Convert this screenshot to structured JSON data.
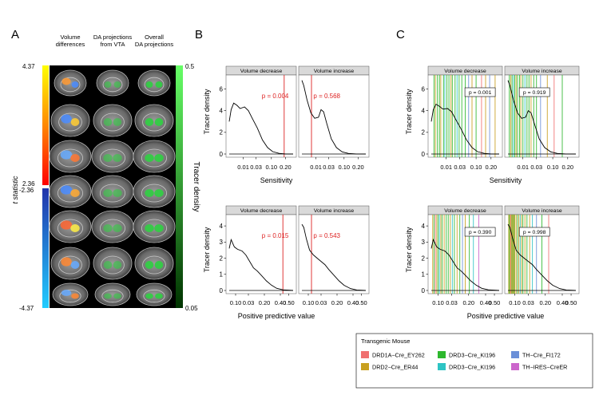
{
  "figure": {
    "panel_labels": [
      "A",
      "B",
      "C"
    ]
  },
  "panel_a": {
    "column_headers": [
      [
        "Volume",
        "differences"
      ],
      [
        "DA projections",
        "from VTA"
      ],
      [
        "Overall",
        "DA projections"
      ]
    ],
    "t_axis": {
      "title": "t statistic",
      "ticks": [
        "4.37",
        "2.36",
        "-2.36",
        "-4.37"
      ]
    },
    "tracer_axis": {
      "title": "Tracer density",
      "ticks": [
        "0.5",
        "0.05"
      ]
    },
    "colors": {
      "hot_top": "#ffff00",
      "hot_bottom": "#ff0000",
      "cold_top": "#2233aa",
      "cold_bottom": "#22ccff",
      "tracer_top": "#66ff66",
      "tracer_bottom": "#003300"
    }
  },
  "chart_data": [
    {
      "id": "B-sensitivity",
      "type": "line",
      "panel": "B",
      "ylabel": "Tracer density",
      "xlabel": "Sensitivity",
      "x_ticks": [
        "0.01",
        "0.03",
        "0.10",
        "0.20"
      ],
      "facets": [
        {
          "title": "Volume decrease",
          "y_ticks": [
            "0",
            "2",
            "4",
            "6"
          ],
          "ylim": [
            0,
            7
          ],
          "p_label": "p = 0.004",
          "density": [
            [
              0,
              3.0
            ],
            [
              0.03,
              4.1
            ],
            [
              0.07,
              4.7
            ],
            [
              0.12,
              4.5
            ],
            [
              0.17,
              4.2
            ],
            [
              0.24,
              4.35
            ],
            [
              0.3,
              4.0
            ],
            [
              0.36,
              3.3
            ],
            [
              0.44,
              2.4
            ],
            [
              0.52,
              1.3
            ],
            [
              0.6,
              0.6
            ],
            [
              0.68,
              0.22
            ],
            [
              0.78,
              0.06
            ],
            [
              0.88,
              0.01
            ],
            [
              1,
              0
            ]
          ],
          "threshold_x": 0.86
        },
        {
          "title": "Volume increase",
          "y_ticks": [],
          "ylim": [
            0,
            7
          ],
          "p_label": "p = 0.568",
          "density": [
            [
              0,
              6.8
            ],
            [
              0.03,
              6.3
            ],
            [
              0.08,
              5.0
            ],
            [
              0.14,
              3.8
            ],
            [
              0.2,
              3.3
            ],
            [
              0.26,
              3.4
            ],
            [
              0.3,
              4.1
            ],
            [
              0.34,
              3.9
            ],
            [
              0.39,
              2.8
            ],
            [
              0.46,
              1.4
            ],
            [
              0.54,
              0.6
            ],
            [
              0.63,
              0.2
            ],
            [
              0.73,
              0.05
            ],
            [
              0.85,
              0.01
            ],
            [
              1,
              0
            ]
          ],
          "threshold_x": 0.15
        }
      ]
    },
    {
      "id": "B-ppv",
      "type": "line",
      "panel": "B",
      "ylabel": "Tracer density",
      "xlabel": "Positive predictive value",
      "x_ticks": [
        "0.10",
        "0.03",
        "0.20",
        "0.40",
        "0.50"
      ],
      "facets": [
        {
          "title": "Volume decrease",
          "y_ticks": [
            "0",
            "1",
            "2",
            "3",
            "4"
          ],
          "ylim": [
            0,
            4.5
          ],
          "p_label": "p = 0.015",
          "density": [
            [
              0,
              2.6
            ],
            [
              0.03,
              3.15
            ],
            [
              0.08,
              2.7
            ],
            [
              0.13,
              2.55
            ],
            [
              0.2,
              2.45
            ],
            [
              0.26,
              2.2
            ],
            [
              0.32,
              1.8
            ],
            [
              0.38,
              1.4
            ],
            [
              0.44,
              1.2
            ],
            [
              0.5,
              0.95
            ],
            [
              0.58,
              0.6
            ],
            [
              0.66,
              0.33
            ],
            [
              0.74,
              0.14
            ],
            [
              0.84,
              0.04
            ],
            [
              1,
              0
            ]
          ],
          "threshold_x": 0.84
        },
        {
          "title": "Volume increase",
          "y_ticks": [],
          "ylim": [
            0,
            4.5
          ],
          "p_label": "p = 0.543",
          "density": [
            [
              0,
              4.1
            ],
            [
              0.03,
              3.9
            ],
            [
              0.07,
              3.2
            ],
            [
              0.12,
              2.5
            ],
            [
              0.18,
              2.2
            ],
            [
              0.24,
              2.0
            ],
            [
              0.3,
              1.8
            ],
            [
              0.36,
              1.6
            ],
            [
              0.42,
              1.3
            ],
            [
              0.5,
              0.95
            ],
            [
              0.58,
              0.6
            ],
            [
              0.66,
              0.32
            ],
            [
              0.76,
              0.12
            ],
            [
              0.86,
              0.03
            ],
            [
              1,
              0
            ]
          ],
          "threshold_x": 0.15
        }
      ]
    },
    {
      "id": "C-sensitivity",
      "type": "line",
      "panel": "C",
      "ylabel": "Tracer density",
      "xlabel": "Sensitivity",
      "x_ticks": [
        "0.01",
        "0.03",
        "0.10",
        "0.20"
      ],
      "facets": [
        {
          "title": "Volume decrease",
          "y_ticks": [
            "0",
            "2",
            "4",
            "6"
          ],
          "ylim": [
            0,
            7
          ],
          "p_label": "p = 0.001",
          "density": [
            [
              0,
              3.0
            ],
            [
              0.03,
              4.1
            ],
            [
              0.07,
              4.6
            ],
            [
              0.12,
              4.4
            ],
            [
              0.17,
              4.15
            ],
            [
              0.24,
              4.2
            ],
            [
              0.3,
              3.9
            ],
            [
              0.36,
              3.2
            ],
            [
              0.44,
              2.3
            ],
            [
              0.52,
              1.3
            ],
            [
              0.6,
              0.6
            ],
            [
              0.68,
              0.22
            ],
            [
              0.78,
              0.06
            ],
            [
              0.88,
              0.01
            ],
            [
              1,
              0
            ]
          ],
          "lines": [
            [
              0.04,
              "#2db82d"
            ],
            [
              0.06,
              "#c8a020"
            ],
            [
              0.09,
              "#2db82d"
            ],
            [
              0.12,
              "#2db82d"
            ],
            [
              0.14,
              "#c8a020"
            ],
            [
              0.18,
              "#2db82d"
            ],
            [
              0.2,
              "#2ec4c4"
            ],
            [
              0.23,
              "#2db82d"
            ],
            [
              0.26,
              "#2db82d"
            ],
            [
              0.29,
              "#c8a020"
            ],
            [
              0.31,
              "#2db82d"
            ],
            [
              0.35,
              "#2db82d"
            ],
            [
              0.38,
              "#2ec4c4"
            ],
            [
              0.41,
              "#2db82d"
            ],
            [
              0.45,
              "#2db82d"
            ],
            [
              0.5,
              "#2db82d"
            ],
            [
              0.55,
              "#6a8fd8"
            ],
            [
              0.6,
              "#c8a020"
            ],
            [
              0.66,
              "#2db82d"
            ],
            [
              0.74,
              "#f07070"
            ],
            [
              0.8,
              "#c8a020"
            ],
            [
              0.86,
              "#6a8fd8"
            ],
            [
              0.94,
              "#c8a020"
            ]
          ]
        },
        {
          "title": "Volume increase",
          "y_ticks": [],
          "ylim": [
            0,
            7
          ],
          "p_label": "p = 0.919",
          "density": [
            [
              0,
              6.8
            ],
            [
              0.03,
              6.3
            ],
            [
              0.08,
              5.0
            ],
            [
              0.14,
              3.8
            ],
            [
              0.2,
              3.3
            ],
            [
              0.26,
              3.4
            ],
            [
              0.3,
              4.0
            ],
            [
              0.34,
              3.8
            ],
            [
              0.39,
              2.8
            ],
            [
              0.46,
              1.4
            ],
            [
              0.54,
              0.6
            ],
            [
              0.63,
              0.2
            ],
            [
              0.73,
              0.05
            ],
            [
              0.85,
              0.01
            ],
            [
              1,
              0
            ]
          ],
          "lines": [
            [
              0.02,
              "#2db82d"
            ],
            [
              0.04,
              "#c8a020"
            ],
            [
              0.06,
              "#2db82d"
            ],
            [
              0.08,
              "#2ec4c4"
            ],
            [
              0.1,
              "#2db82d"
            ],
            [
              0.12,
              "#c8a020"
            ],
            [
              0.14,
              "#2db82d"
            ],
            [
              0.17,
              "#2db82d"
            ],
            [
              0.19,
              "#c8a020"
            ],
            [
              0.22,
              "#2db82d"
            ],
            [
              0.25,
              "#2ec4c4"
            ],
            [
              0.28,
              "#2db82d"
            ],
            [
              0.31,
              "#2db82d"
            ],
            [
              0.34,
              "#c8a020"
            ],
            [
              0.38,
              "#2db82d"
            ],
            [
              0.42,
              "#2db82d"
            ],
            [
              0.48,
              "#6a8fd8"
            ],
            [
              0.58,
              "#c8a020"
            ],
            [
              0.68,
              "#f07070"
            ],
            [
              0.8,
              "#2db82d"
            ]
          ]
        }
      ]
    },
    {
      "id": "C-ppv",
      "type": "line",
      "panel": "C",
      "ylabel": "Tracer density",
      "xlabel": "Positive predictive value",
      "x_ticks": [
        "0.10",
        "0.03",
        "0.20",
        "0.40",
        "0.50"
      ],
      "facets": [
        {
          "title": "Volume decrease",
          "y_ticks": [
            "0",
            "1",
            "2",
            "3",
            "4"
          ],
          "ylim": [
            0,
            4.5
          ],
          "p_label": "p = 0.390",
          "density": [
            [
              0,
              2.6
            ],
            [
              0.03,
              3.15
            ],
            [
              0.08,
              2.7
            ],
            [
              0.13,
              2.55
            ],
            [
              0.2,
              2.45
            ],
            [
              0.26,
              2.2
            ],
            [
              0.32,
              1.8
            ],
            [
              0.38,
              1.4
            ],
            [
              0.44,
              1.2
            ],
            [
              0.5,
              0.95
            ],
            [
              0.58,
              0.6
            ],
            [
              0.66,
              0.33
            ],
            [
              0.74,
              0.14
            ],
            [
              0.84,
              0.04
            ],
            [
              1,
              0
            ]
          ],
          "lines": [
            [
              0.02,
              "#c8a020"
            ],
            [
              0.04,
              "#2db82d"
            ],
            [
              0.06,
              "#f07070"
            ],
            [
              0.08,
              "#c8a020"
            ],
            [
              0.1,
              "#2db82d"
            ],
            [
              0.12,
              "#2ec4c4"
            ],
            [
              0.14,
              "#c8a020"
            ],
            [
              0.16,
              "#2db82d"
            ],
            [
              0.19,
              "#c8a020"
            ],
            [
              0.22,
              "#2db82d"
            ],
            [
              0.25,
              "#2db82d"
            ],
            [
              0.28,
              "#c8a020"
            ],
            [
              0.31,
              "#2ec4c4"
            ],
            [
              0.34,
              "#2db82d"
            ],
            [
              0.38,
              "#c8a020"
            ],
            [
              0.42,
              "#2db82d"
            ],
            [
              0.46,
              "#6a8fd8"
            ],
            [
              0.5,
              "#c8a020"
            ],
            [
              0.56,
              "#2db82d"
            ],
            [
              0.62,
              "#2ec4c4"
            ],
            [
              0.7,
              "#cc66cc"
            ]
          ]
        },
        {
          "title": "Volume increase",
          "y_ticks": [],
          "ylim": [
            0,
            4.5
          ],
          "p_label": "p = 0.998",
          "density": [
            [
              0,
              4.1
            ],
            [
              0.03,
              3.9
            ],
            [
              0.07,
              3.2
            ],
            [
              0.12,
              2.5
            ],
            [
              0.18,
              2.2
            ],
            [
              0.24,
              2.0
            ],
            [
              0.3,
              1.8
            ],
            [
              0.36,
              1.6
            ],
            [
              0.42,
              1.3
            ],
            [
              0.5,
              0.95
            ],
            [
              0.58,
              0.6
            ],
            [
              0.66,
              0.32
            ],
            [
              0.76,
              0.12
            ],
            [
              0.86,
              0.03
            ],
            [
              1,
              0
            ]
          ],
          "lines": [
            [
              0.01,
              "#c8a020"
            ],
            [
              0.02,
              "#2db82d"
            ],
            [
              0.03,
              "#c8a020"
            ],
            [
              0.04,
              "#f07070"
            ],
            [
              0.05,
              "#c8a020"
            ],
            [
              0.06,
              "#2db82d"
            ],
            [
              0.07,
              "#c8a020"
            ],
            [
              0.08,
              "#c8a020"
            ],
            [
              0.09,
              "#2db82d"
            ],
            [
              0.1,
              "#c8a020"
            ],
            [
              0.12,
              "#c8a020"
            ],
            [
              0.14,
              "#2db82d"
            ],
            [
              0.16,
              "#c8a020"
            ],
            [
              0.18,
              "#2ec4c4"
            ],
            [
              0.2,
              "#c8a020"
            ],
            [
              0.22,
              "#2db82d"
            ],
            [
              0.25,
              "#c8a020"
            ],
            [
              0.28,
              "#2db82d"
            ],
            [
              0.32,
              "#c8a020"
            ],
            [
              0.36,
              "#2ec4c4"
            ],
            [
              0.42,
              "#6a8fd8"
            ],
            [
              0.5,
              "#2db82d"
            ],
            [
              0.6,
              "#f07070"
            ]
          ]
        }
      ]
    }
  ],
  "legend": {
    "title": "Transgenic Mouse",
    "items": [
      {
        "label": "DRD1A−Cre_EY262",
        "color": "#f07070"
      },
      {
        "label": "DRD3−Cre_KI196",
        "color": "#2db82d"
      },
      {
        "label": "TH−Cre_FI172",
        "color": "#6a8fd8"
      },
      {
        "label": "DRD2−Cre_ER44",
        "color": "#c8a020"
      },
      {
        "label": "DRD3−Cre_KI196",
        "color": "#2ec4c4"
      },
      {
        "label": "TH−IRES−CreER",
        "color": "#cc66cc"
      }
    ]
  }
}
